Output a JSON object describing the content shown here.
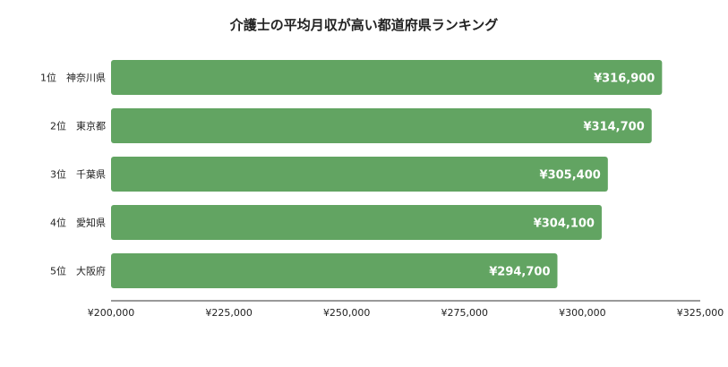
{
  "chart_data": {
    "type": "bar",
    "orientation": "horizontal",
    "title": "介護士の平均月収が高い都道府県ランキング",
    "xlabel": "",
    "ylabel": "",
    "categories": [
      "1位　神奈川県",
      "2位　東京都",
      "3位　千葉県",
      "4位　愛知県",
      "5位　大阪府"
    ],
    "values": [
      316900,
      314700,
      305400,
      304100,
      294700
    ],
    "value_labels": [
      "¥316,900",
      "¥314,700",
      "¥305,400",
      "¥304,100",
      "¥294,700"
    ],
    "xlim": [
      200000,
      325000
    ],
    "ticks": [
      200000,
      225000,
      250000,
      275000,
      300000,
      325000
    ],
    "tick_labels": [
      "¥200,000",
      "¥225,000",
      "¥250,000",
      "¥275,000",
      "¥300,000",
      "¥325,000"
    ],
    "grid": false,
    "legend": "none",
    "bar_color": "#62a462"
  }
}
